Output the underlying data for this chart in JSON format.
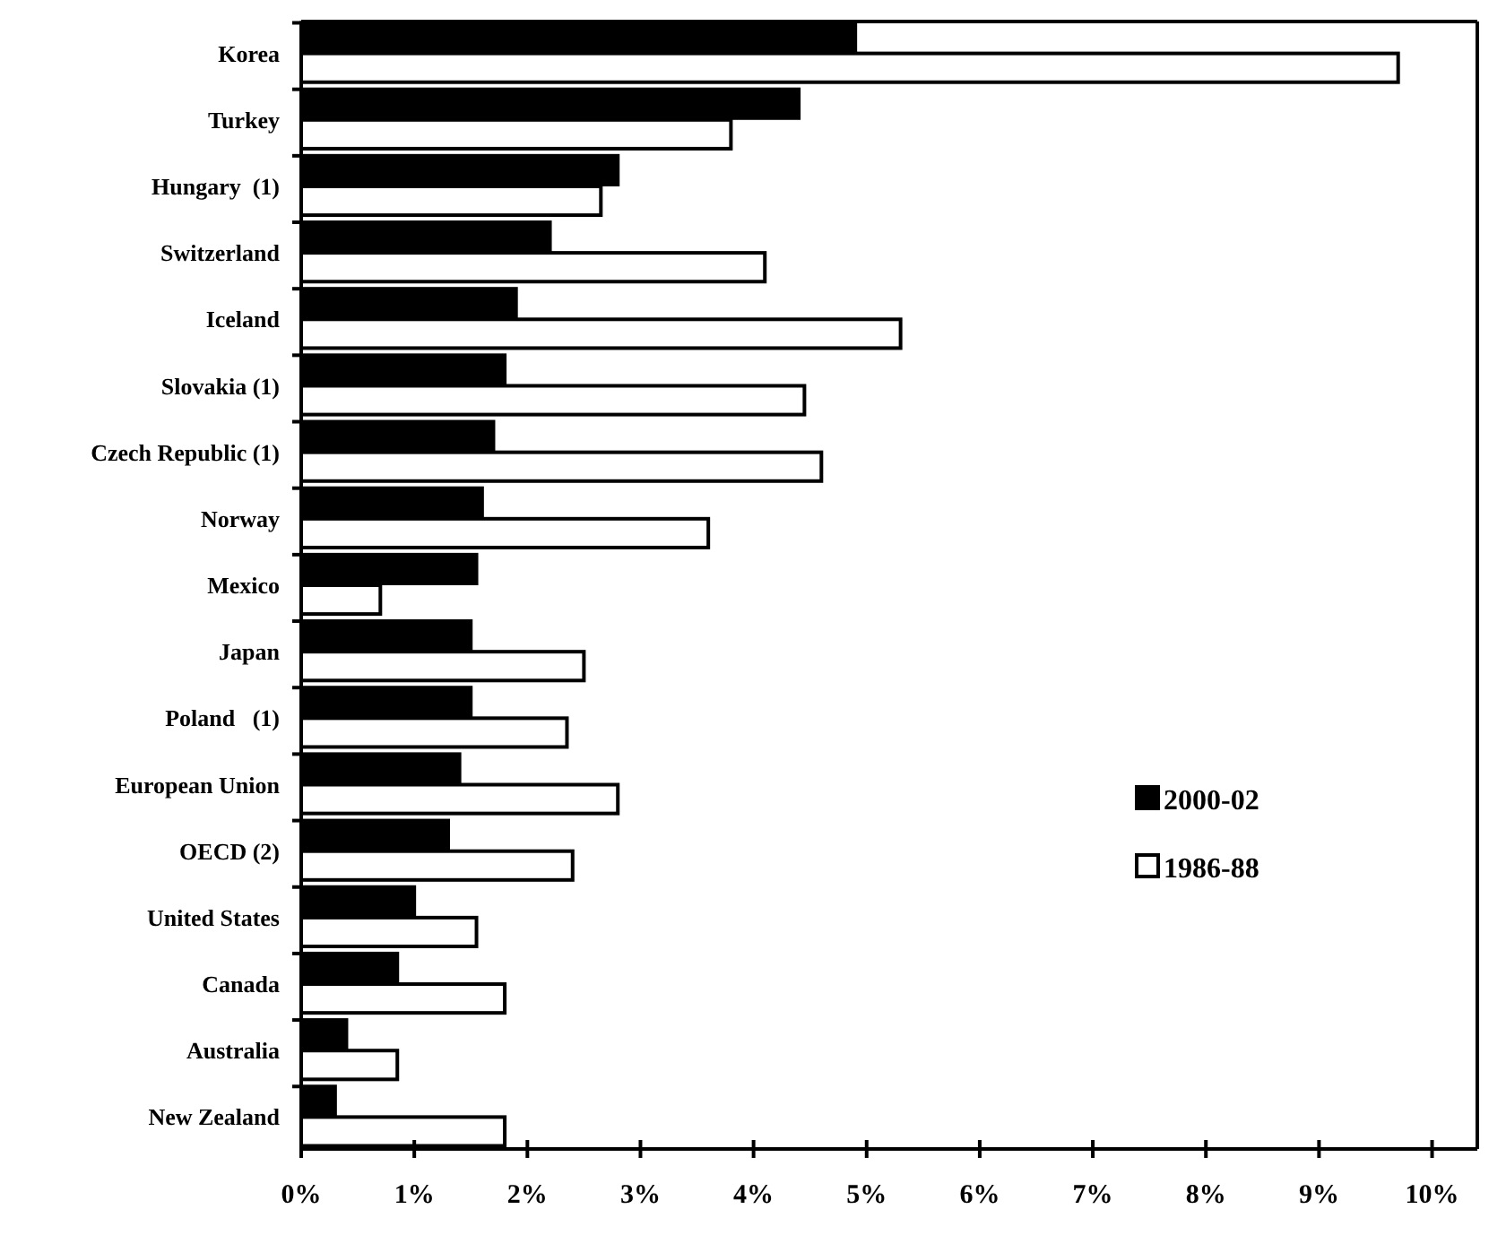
{
  "chart_data": {
    "type": "bar",
    "orientation": "horizontal",
    "categories": [
      "Korea",
      "Turkey",
      "Hungary  (1)",
      "Switzerland",
      "Iceland",
      "Slovakia (1)",
      "Czech Republic (1)",
      "Norway",
      "Mexico",
      "Japan",
      "Poland   (1)",
      "European Union",
      "OECD (2)",
      "United States",
      "Canada",
      "Australia",
      "New Zealand"
    ],
    "series": [
      {
        "name": "2000-02",
        "color": "#000000",
        "values": [
          4.9,
          4.4,
          2.8,
          2.2,
          1.9,
          1.8,
          1.7,
          1.6,
          1.55,
          1.5,
          1.5,
          1.4,
          1.3,
          1.0,
          0.85,
          0.4,
          0.3
        ]
      },
      {
        "name": "1986-88",
        "color": "#ffffff",
        "values": [
          9.7,
          3.8,
          2.65,
          4.1,
          5.3,
          4.45,
          4.6,
          3.6,
          0.7,
          2.5,
          2.35,
          2.8,
          2.4,
          1.55,
          1.8,
          0.85,
          1.8
        ]
      }
    ],
    "xlim": [
      0,
      10.4
    ],
    "xticks": [
      {
        "value": 0,
        "label": "0%"
      },
      {
        "value": 1,
        "label": "1%"
      },
      {
        "value": 2,
        "label": "2%"
      },
      {
        "value": 3,
        "label": "3%"
      },
      {
        "value": 4,
        "label": "4%"
      },
      {
        "value": 5,
        "label": "5%"
      },
      {
        "value": 6,
        "label": "6%"
      },
      {
        "value": 7,
        "label": "7%"
      },
      {
        "value": 8,
        "label": "8%"
      },
      {
        "value": 9,
        "label": "9%"
      },
      {
        "value": 10,
        "label": "10%"
      }
    ],
    "legend": "right",
    "grid": false
  }
}
